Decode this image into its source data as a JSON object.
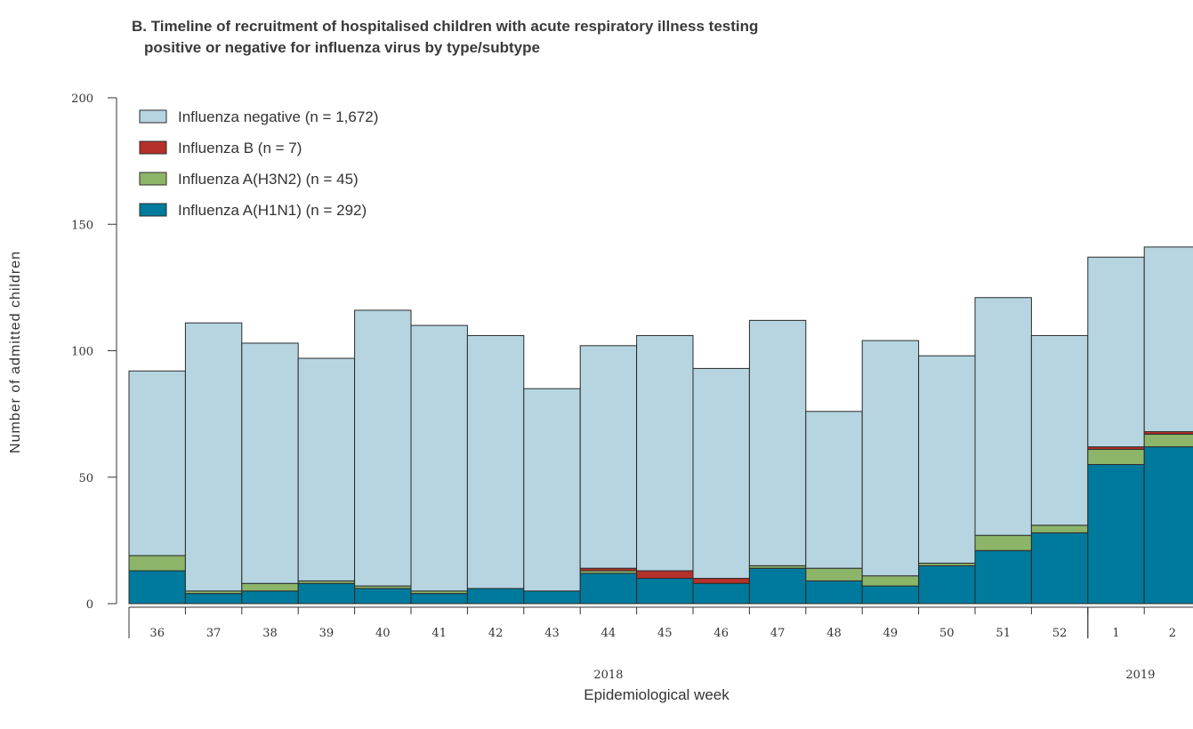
{
  "title_line1": "B. Timeline of recruitment of hospitalised children with acute respiratory illness testing",
  "title_line2": "positive or negative for influenza virus by type/subtype",
  "chart_data": {
    "type": "bar",
    "stacked": true,
    "title": "B. Timeline of recruitment of hospitalised children with acute respiratory illness testing positive or negative for influenza virus by type/subtype",
    "xlabel": "Epidemiological week",
    "ylabel": "Number of admitted children",
    "ylim": [
      0,
      200
    ],
    "yticks": [
      0,
      50,
      100,
      150,
      200
    ],
    "categories": [
      "36",
      "37",
      "38",
      "39",
      "40",
      "41",
      "42",
      "43",
      "44",
      "45",
      "46",
      "47",
      "48",
      "49",
      "50",
      "51",
      "52",
      "1",
      "2"
    ],
    "year_groups": [
      {
        "label": "2018",
        "from": "36",
        "to": "52"
      },
      {
        "label": "2019",
        "from": "1",
        "to": "2"
      }
    ],
    "legend_position": "top-left",
    "grid": false,
    "series": [
      {
        "name": "Influenza A(H1N1) (n = 292)",
        "color": "#007a9c",
        "values": [
          13,
          4,
          5,
          8,
          6,
          4,
          6,
          5,
          12,
          10,
          8,
          14,
          9,
          7,
          15,
          21,
          28,
          55,
          62
        ]
      },
      {
        "name": "Influenza A(H3N2) (n = 45)",
        "color": "#8cb56a",
        "values": [
          6,
          1,
          3,
          1,
          1,
          1,
          0,
          0,
          1,
          0,
          0,
          1,
          5,
          4,
          1,
          6,
          3,
          6,
          5
        ]
      },
      {
        "name": "Influenza B (n = 7)",
        "color": "#b5302a",
        "values": [
          0,
          0,
          0,
          0,
          0,
          0,
          0,
          0,
          1,
          3,
          2,
          0,
          0,
          0,
          0,
          0,
          0,
          1,
          1
        ]
      },
      {
        "name": "Influenza negative (n = 1,672)",
        "color": "#b6d5e1",
        "values": [
          73,
          106,
          95,
          88,
          109,
          105,
          100,
          80,
          88,
          93,
          83,
          97,
          62,
          93,
          82,
          94,
          75,
          75,
          73
        ]
      }
    ]
  }
}
